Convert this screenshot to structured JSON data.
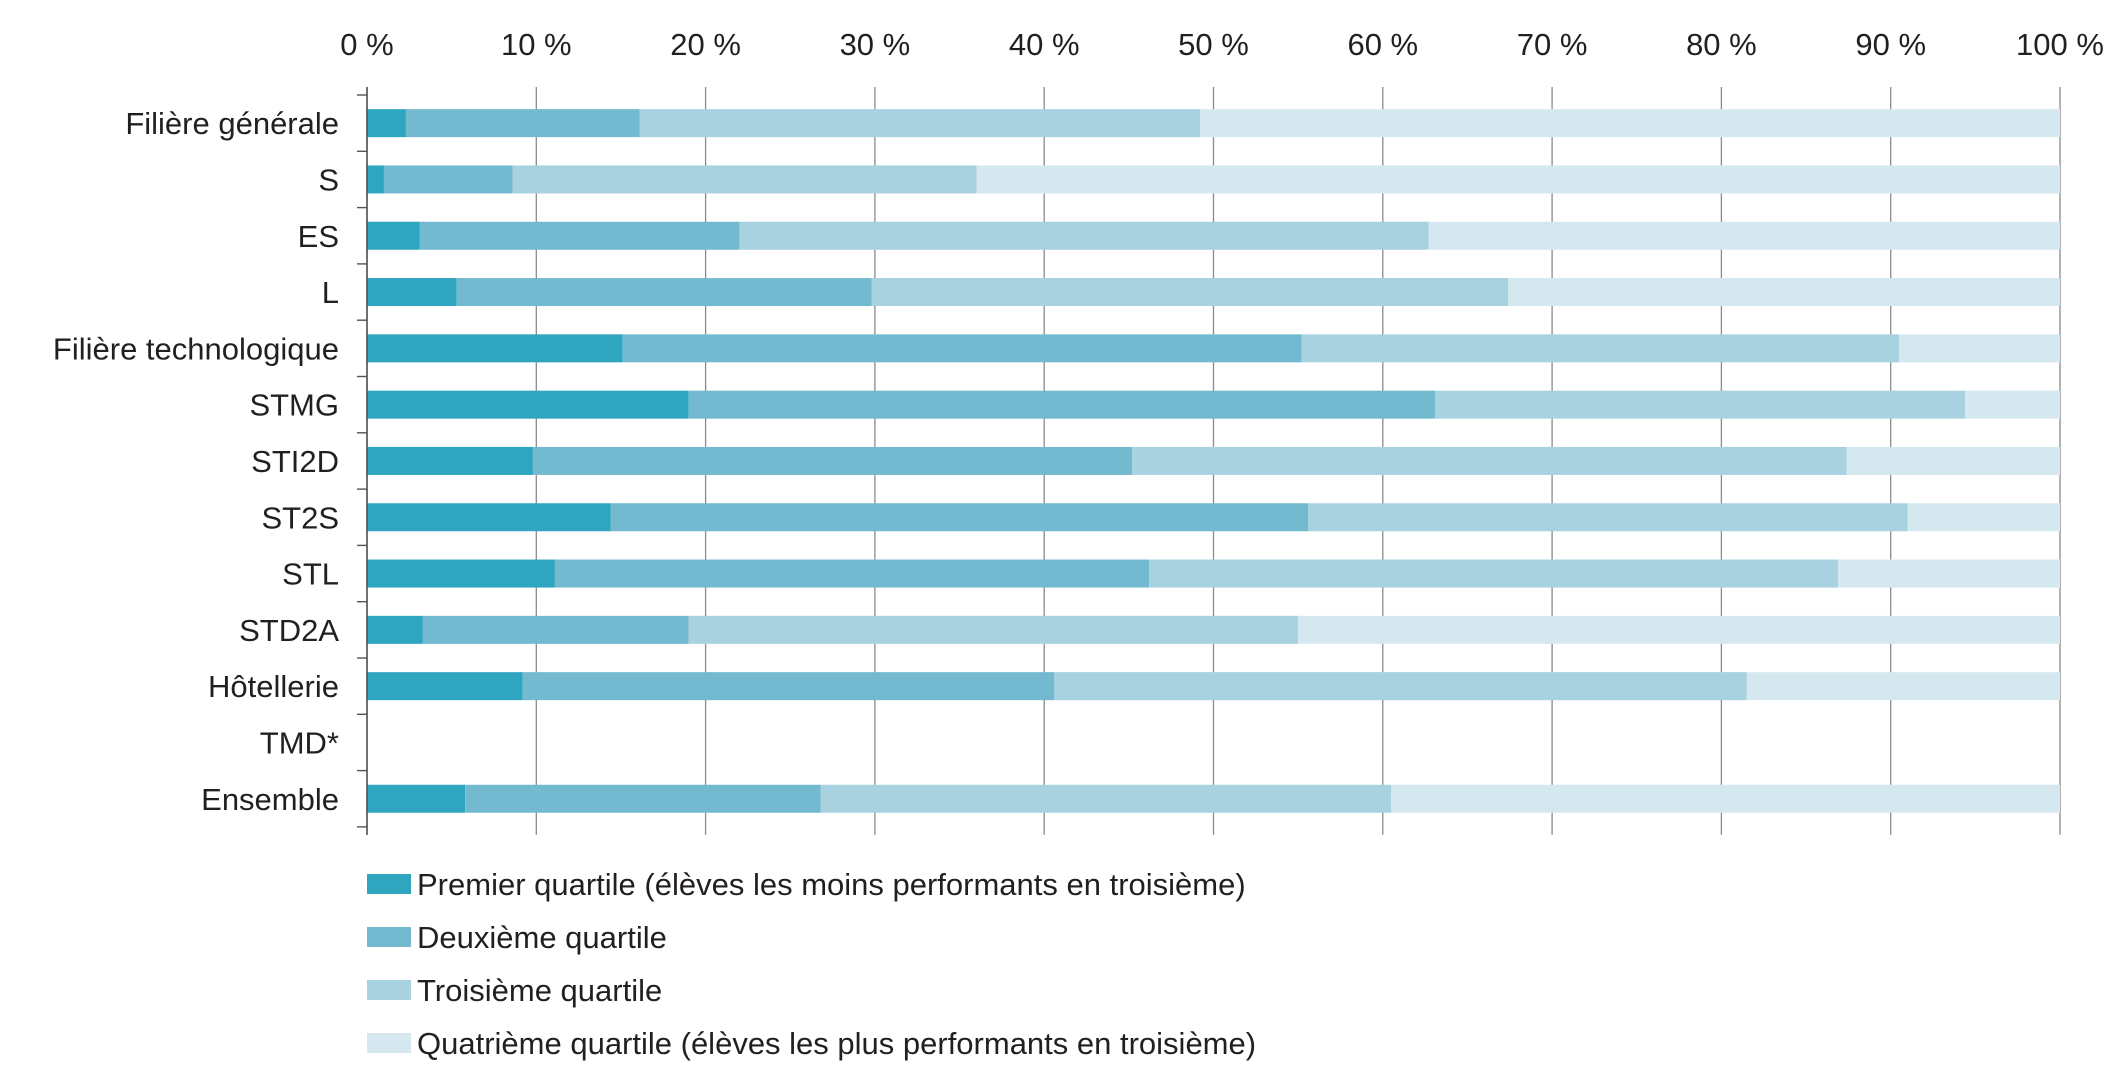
{
  "chart_data": {
    "type": "bar",
    "orientation": "horizontal",
    "stacked": true,
    "title": "",
    "xlabel": "",
    "ylabel": "",
    "xlim": [
      0,
      100
    ],
    "x_ticks": [
      "0 %",
      "10 %",
      "20 %",
      "30 %",
      "40 %",
      "50 %",
      "60 %",
      "70 %",
      "80 %",
      "90 %",
      "100 %"
    ],
    "x_axis_position": "top",
    "grid": true,
    "legend_position": "bottom",
    "categories": [
      "Filière générale",
      "S",
      "ES",
      "L",
      "Filière technologique",
      "STMG",
      "STI2D",
      "ST2S",
      "STL",
      "STD2A",
      "Hôtellerie",
      "TMD*",
      "Ensemble"
    ],
    "series": [
      {
        "name": "Premier quartile (élèves les moins performants en troisième)",
        "color": "#2fa5bf",
        "values": [
          2.3,
          1.0,
          3.1,
          5.3,
          15.1,
          19.0,
          9.8,
          14.4,
          11.1,
          3.3,
          9.2,
          null,
          5.8
        ]
      },
      {
        "name": "Deuxième quartile",
        "color": "#73b9d0",
        "values": [
          13.8,
          7.6,
          18.9,
          24.5,
          40.1,
          44.1,
          35.4,
          41.2,
          35.1,
          15.7,
          31.4,
          null,
          21.0
        ]
      },
      {
        "name": "Troisième quartile",
        "color": "#a8d2e0",
        "values": [
          33.1,
          27.4,
          40.7,
          37.6,
          35.3,
          31.3,
          42.2,
          35.4,
          40.7,
          36.0,
          40.9,
          null,
          33.7
        ]
      },
      {
        "name": "Quatrième quartile (élèves les plus performants en troisième)",
        "color": "#d5e8ef",
        "values": [
          50.8,
          64.0,
          37.3,
          32.6,
          9.5,
          5.6,
          12.6,
          9.0,
          13.1,
          45.0,
          18.5,
          null,
          39.5
        ]
      }
    ]
  }
}
